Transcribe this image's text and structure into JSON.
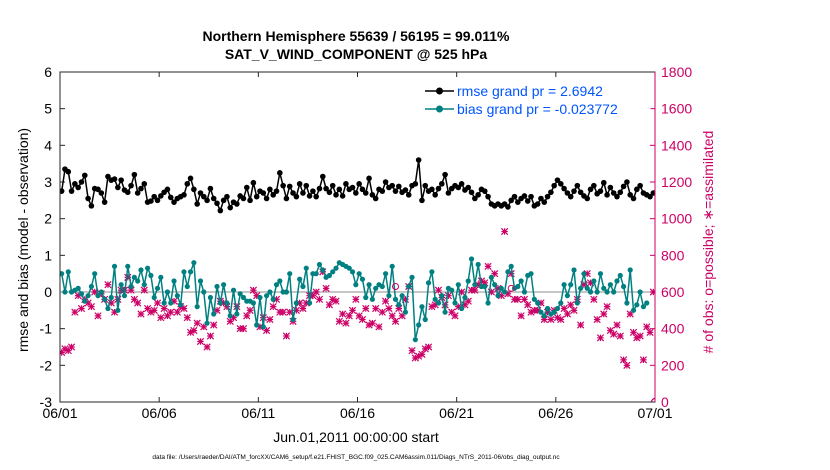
{
  "chart_data": {
    "type": "line",
    "title_line1": "Northern Hemisphere 55639 / 56195 = 99.011%",
    "title_line2": "SAT_V_WIND_COMPONENT @ 525 hPa",
    "xlabel": "Jun.01,2011 00:00:00 start",
    "ylabel_left": "rmse and bias (model - observation)",
    "ylabel_right": "# of obs: o=possible; ∗=assimilated",
    "footer": "data file: /Users/raeder/DAI/ATM_forcXX/CAM6_setup/f.e21.FHIST_BGC.f09_025.CAM6assim.011/Diags_NTrS_2011-06/obs_diag_output.nc",
    "xlim": [
      0,
      30
    ],
    "ylim_left": [
      -3,
      6
    ],
    "ylim_right": [
      0,
      1800
    ],
    "x_ticks": [
      0,
      5,
      10,
      15,
      20,
      25,
      30
    ],
    "x_tick_labels": [
      "06/01",
      "06/06",
      "06/11",
      "06/16",
      "06/21",
      "06/26",
      "07/01"
    ],
    "y_left_ticks": [
      -3,
      -2,
      -1,
      0,
      1,
      2,
      3,
      4,
      5,
      6
    ],
    "y_right_ticks": [
      0,
      200,
      400,
      600,
      800,
      1000,
      1200,
      1400,
      1600,
      1800
    ],
    "legend": [
      {
        "label": "rmse grand pr = 2.6942",
        "color": "#000000"
      },
      {
        "label": "bias grand pr = -0.023772",
        "color": "#008080"
      }
    ],
    "colors": {
      "rmse": "#000000",
      "bias": "#008080",
      "obs": "#cc0066",
      "zero_line": "#b3b3b3",
      "legend_text": "#0055ff"
    },
    "rmse": [
      2.75,
      3.35,
      3.28,
      2.75,
      2.95,
      2.85,
      3.0,
      3.18,
      2.55,
      2.35,
      2.82,
      2.8,
      2.7,
      2.45,
      3.15,
      3.05,
      3.08,
      2.85,
      3.05,
      2.78,
      2.72,
      2.9,
      3.2,
      2.7,
      2.82,
      2.95,
      2.45,
      2.48,
      2.6,
      2.5,
      2.62,
      2.72,
      2.8,
      2.58,
      2.45,
      2.55,
      2.6,
      2.65,
      2.95,
      3.1,
      2.8,
      2.4,
      2.7,
      2.6,
      2.5,
      2.82,
      2.55,
      2.42,
      2.22,
      2.5,
      2.6,
      2.3,
      2.45,
      2.4,
      2.62,
      2.55,
      2.85,
      2.5,
      2.98,
      2.6,
      2.75,
      2.7,
      2.55,
      2.8,
      2.65,
      2.75,
      3.25,
      2.9,
      2.55,
      2.88,
      2.7,
      2.6,
      2.95,
      2.7,
      2.9,
      2.62,
      2.75,
      2.6,
      2.82,
      3.15,
      2.82,
      2.72,
      2.9,
      2.65,
      2.8,
      2.62,
      2.95,
      2.8,
      2.85,
      2.7,
      2.95,
      2.8,
      2.7,
      3.1,
      2.65,
      2.55,
      2.8,
      2.75,
      3.0,
      2.85,
      2.9,
      2.75,
      2.88,
      2.72,
      2.78,
      2.65,
      2.9,
      2.95,
      3.6,
      2.5,
      2.9,
      2.75,
      2.8,
      2.65,
      2.82,
      2.95,
      3.2,
      2.7,
      2.82,
      2.9,
      2.85,
      2.95,
      2.78,
      2.85,
      2.72,
      2.55,
      2.65,
      2.8,
      2.75,
      2.6,
      2.4,
      2.35,
      2.4,
      2.35,
      2.4,
      2.32,
      2.5,
      2.6,
      2.45,
      2.55,
      2.62,
      2.48,
      2.6,
      2.35,
      2.4,
      2.55,
      2.45,
      2.6,
      2.72,
      2.9,
      3.05,
      2.95,
      2.82,
      2.7,
      2.6,
      2.75,
      2.9,
      2.72,
      2.62,
      2.55,
      2.8,
      2.9,
      2.68,
      2.75,
      2.98,
      2.65,
      2.85,
      2.7,
      2.6,
      2.72,
      2.88,
      3.0,
      2.65,
      2.55,
      2.8,
      2.9,
      2.7,
      2.65,
      2.6,
      2.7
    ],
    "bias": [
      0.5,
      0.0,
      0.55,
      0.0,
      0.05,
      0.1,
      -0.05,
      -0.25,
      -0.1,
      0.15,
      0.5,
      -0.1,
      0.0,
      -0.2,
      -0.45,
      -0.15,
      0.7,
      -0.5,
      0.2,
      -0.1,
      0.7,
      0.15,
      0.4,
      0.3,
      0.6,
      0.2,
      0.65,
      0.45,
      -0.15,
      0.1,
      0.4,
      -0.3,
      0.0,
      -0.3,
      0.3,
      -0.1,
      -0.35,
      0.55,
      0.15,
      0.55,
      0.8,
      -0.4,
      0.3,
      0.0,
      -0.85,
      -0.15,
      -0.6,
      0.15,
      -0.3,
      0.2,
      -0.3,
      -0.65,
      0.05,
      -0.6,
      -0.05,
      -0.15,
      -0.25,
      -0.25,
      -0.3,
      -0.9,
      -0.15,
      -0.95,
      -0.1,
      0.0,
      -0.2,
      0.2,
      0.3,
      0.0,
      0.0,
      0.5,
      -0.75,
      -0.3,
      0.35,
      0.15,
      0.65,
      -0.3,
      0.5,
      0.5,
      0.75,
      0.6,
      0.4,
      0.45,
      0.55,
      0.65,
      0.8,
      0.75,
      0.7,
      0.65,
      0.55,
      0.2,
      0.5,
      0.35,
      -0.15,
      0.2,
      -0.2,
      0.1,
      0.2,
      0.15,
      0.5,
      -0.1,
      0.7,
      -0.2,
      -0.35,
      -0.1,
      -0.55,
      0.15,
      0.4,
      -1.3,
      -0.9,
      -0.4,
      -0.75,
      0.25,
      0.55,
      -0.2,
      -0.3,
      -0.1,
      -0.55,
      0.1,
      0.05,
      -0.3,
      0.2,
      -0.45,
      -0.15,
      0.3,
      0.9,
      0.2,
      0.75,
      0.15,
      0.15,
      -0.3,
      0.4,
      0.2,
      -0.1,
      0.1,
      0.0,
      0.55,
      0.7,
      0.1,
      0.15,
      0.3,
      0.0,
      0.45,
      0.5,
      -0.2,
      -0.3,
      -0.55,
      -0.65,
      -0.45,
      -0.6,
      -0.55,
      -0.45,
      -0.3,
      0.2,
      -0.1,
      0.2,
      0.6,
      -0.3,
      0.1,
      0.5,
      0.1,
      0.0,
      0.3,
      0.0,
      0.5,
      0.1,
      0.0,
      0.2,
      0.0,
      0.3,
      0.45,
      0.15,
      -0.3,
      0.6,
      -0.5,
      -0.35,
      0.0,
      -0.4,
      -0.3
    ],
    "obs_assimilated": [
      270,
      290,
      280,
      300,
      490,
      580,
      510,
      560,
      540,
      520,
      600,
      470,
      590,
      560,
      640,
      540,
      490,
      560,
      610,
      610,
      680,
      610,
      560,
      540,
      480,
      610,
      510,
      490,
      500,
      540,
      460,
      510,
      470,
      490,
      550,
      490,
      520,
      510,
      460,
      380,
      390,
      430,
      330,
      410,
      300,
      360,
      420,
      500,
      550,
      540,
      520,
      440,
      460,
      520,
      400,
      400,
      470,
      500,
      610,
      580,
      410,
      460,
      390,
      450,
      520,
      560,
      490,
      490,
      360,
      490,
      440,
      500,
      540,
      510,
      540,
      580,
      580,
      600,
      560,
      710,
      620,
      530,
      560,
      550,
      440,
      480,
      430,
      470,
      500,
      560,
      470,
      450,
      510,
      420,
      430,
      510,
      410,
      490,
      550,
      510,
      470,
      440,
      510,
      470,
      560,
      630,
      280,
      240,
      250,
      260,
      290,
      300,
      520,
      530,
      610,
      570,
      530,
      580,
      490,
      470,
      520,
      600,
      530,
      550,
      610,
      610,
      640,
      660,
      650,
      740,
      600,
      700,
      620,
      580,
      930,
      590,
      700,
      560,
      560,
      470,
      560,
      530,
      490,
      500,
      500,
      540,
      450,
      490,
      450,
      500,
      460,
      450,
      510,
      480,
      530,
      500,
      560,
      420,
      640,
      700,
      650,
      560,
      450,
      350,
      480,
      520,
      390,
      370,
      420,
      360,
      230,
      200,
      480,
      380,
      350,
      360,
      230,
      410,
      380,
      600
    ]
  }
}
